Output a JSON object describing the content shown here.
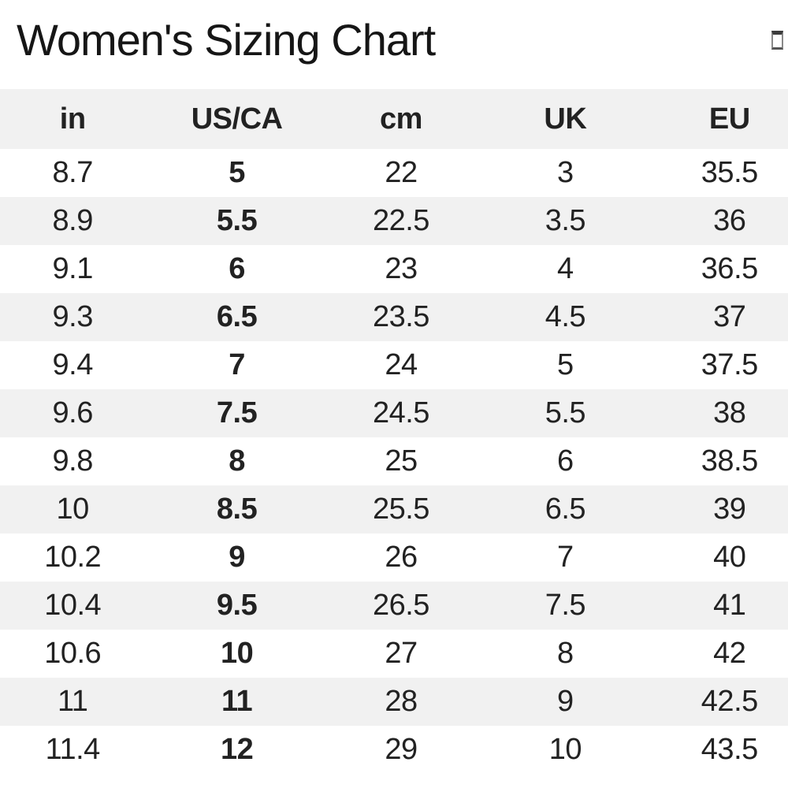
{
  "window": {
    "title": "Women's Sizing Chart"
  },
  "icons": {
    "top_right_box": "missing-glyph-box"
  },
  "sizing_table": {
    "columns": [
      "in",
      "US/CA",
      "cm",
      "UK",
      "EU"
    ],
    "bold_column_index": 1,
    "rows": [
      [
        "8.7",
        "5",
        "22",
        "3",
        "35.5"
      ],
      [
        "8.9",
        "5.5",
        "22.5",
        "3.5",
        "36"
      ],
      [
        "9.1",
        "6",
        "23",
        "4",
        "36.5"
      ],
      [
        "9.3",
        "6.5",
        "23.5",
        "4.5",
        "37"
      ],
      [
        "9.4",
        "7",
        "24",
        "5",
        "37.5"
      ],
      [
        "9.6",
        "7.5",
        "24.5",
        "5.5",
        "38"
      ],
      [
        "9.8",
        "8",
        "25",
        "6",
        "38.5"
      ],
      [
        "10",
        "8.5",
        "25.5",
        "6.5",
        "39"
      ],
      [
        "10.2",
        "9",
        "26",
        "7",
        "40"
      ],
      [
        "10.4",
        "9.5",
        "26.5",
        "7.5",
        "41"
      ],
      [
        "10.6",
        "10",
        "27",
        "8",
        "42"
      ],
      [
        "11",
        "11",
        "28",
        "9",
        "42.5"
      ],
      [
        "11.4",
        "12",
        "29",
        "10",
        "43.5"
      ]
    ]
  },
  "colors": {
    "stripe": "#f1f1f1",
    "text": "#222222",
    "title_text": "#161616"
  }
}
